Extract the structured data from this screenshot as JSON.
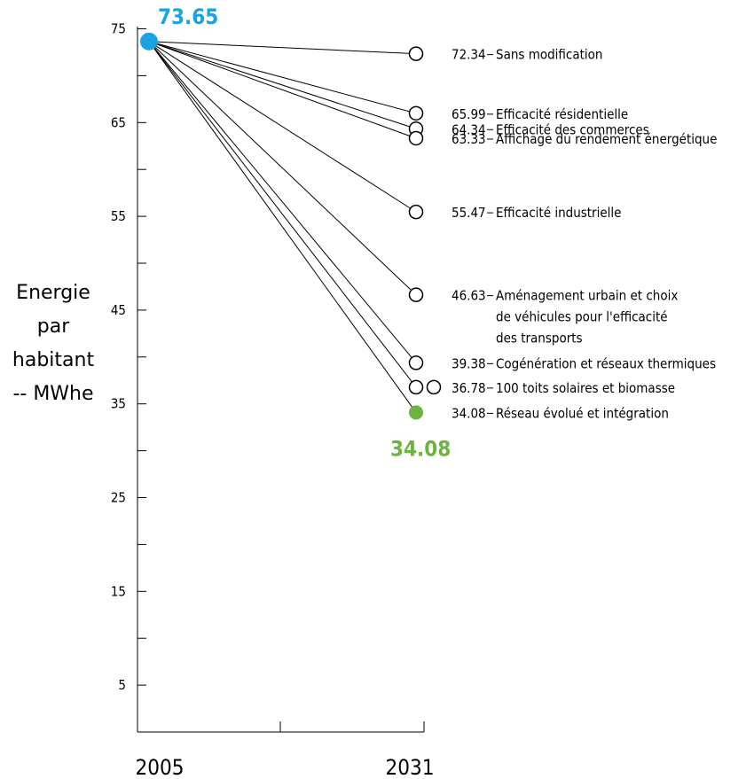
{
  "chart_data": {
    "type": "line",
    "x": [
      "2005",
      "2031"
    ],
    "ylim": [
      0,
      75
    ],
    "yticks": [
      5,
      15,
      25,
      35,
      45,
      55,
      65,
      75
    ],
    "ylabel_lines": [
      "Energie",
      "par",
      "habitant",
      "-- MWhe"
    ],
    "start_value": 73.65,
    "start_label": "73.65",
    "end_highlight_label": "34.08",
    "colors": {
      "start": "#1aa3e0",
      "highlight": "#6cb33f",
      "line": "#000000"
    },
    "series": [
      {
        "value": 72.34,
        "value_label": "72.34",
        "label_lines": [
          "Sans modification"
        ]
      },
      {
        "value": 65.99,
        "value_label": "65.99",
        "label_lines": [
          "Efficacité résidentielle"
        ]
      },
      {
        "value": 64.34,
        "value_label": "64.34",
        "label_lines": [
          "Efficacité des commerces"
        ]
      },
      {
        "value": 63.33,
        "value_label": "63.33",
        "label_lines": [
          "Affichage du rendement énergétique"
        ]
      },
      {
        "value": 55.47,
        "value_label": "55.47",
        "label_lines": [
          "Efficacité industrielle"
        ]
      },
      {
        "value": 46.63,
        "value_label": "46.63",
        "label_lines": [
          "Aménagement urbain et choix",
          "de véhicules pour l'efficacité",
          "des transports"
        ]
      },
      {
        "value": 39.38,
        "value_label": "39.38",
        "label_lines": [
          "Cogénération et réseaux thermiques"
        ]
      },
      {
        "value": 36.78,
        "value_label": "36.78",
        "label_lines": [
          "100 toits solaires et biomasse"
        ]
      },
      {
        "value": 34.08,
        "value_label": "34.08",
        "label_lines": [
          "Réseau évolué et intégration"
        ],
        "highlight": true
      }
    ]
  }
}
